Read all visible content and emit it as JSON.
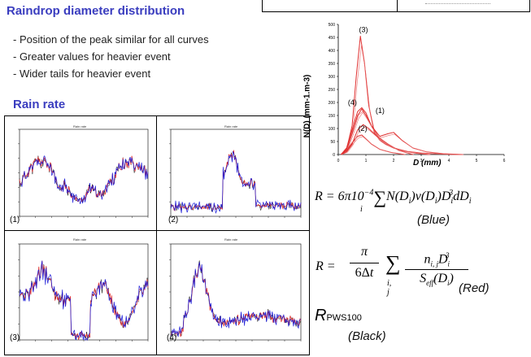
{
  "heading_drop": "Raindrop diameter distribution",
  "bullets": [
    "- Position of the peak similar for all curves",
    "- Greater values for heavier event",
    "- Wider tails for heavier event"
  ],
  "heading_rain": "Rain rate",
  "panels": [
    {
      "label": "(1)",
      "title": "Rain rate"
    },
    {
      "label": "(2)",
      "title": "Rain rate"
    },
    {
      "label": "(3)",
      "title": "Rain rate"
    },
    {
      "label": "(4)",
      "title": "Rain rate"
    }
  ],
  "colors": {
    "accent": "#3a3dbf",
    "blue": "#1a1ad8",
    "red": "#e03030",
    "black": "#000000"
  },
  "chart_data": {
    "type": "line",
    "xlabel": "D (mm)",
    "ylabel": "N(D) (mm-1.m-3)",
    "xlim": [
      0,
      6
    ],
    "ylim": [
      0,
      500
    ],
    "xticks": [
      "0",
      "1",
      "2",
      "3",
      "4",
      "5",
      "6"
    ],
    "yticks": [
      "0",
      "50",
      "100",
      "150",
      "200",
      "250",
      "300",
      "350",
      "400",
      "450",
      "500"
    ],
    "curve_labels": [
      "(3)",
      "(4)",
      "(1)",
      "(2)"
    ],
    "series": [
      {
        "label": "(3)",
        "x": [
          0.1,
          0.3,
          0.5,
          0.65,
          0.8,
          0.95,
          1.1,
          1.3,
          1.5,
          1.7,
          2.0,
          2.5,
          3.0,
          3.5,
          4.0,
          4.5
        ],
        "y": [
          0,
          20,
          110,
          300,
          455,
          350,
          190,
          85,
          55,
          40,
          25,
          12,
          6,
          3,
          1,
          0
        ]
      },
      {
        "label": "(4)",
        "x": [
          0.1,
          0.3,
          0.5,
          0.7,
          0.85,
          1.0,
          1.2,
          1.5,
          1.8,
          2.0,
          2.3,
          2.7,
          3.2,
          3.8,
          4.5
        ],
        "y": [
          0,
          25,
          95,
          165,
          180,
          160,
          110,
          70,
          80,
          85,
          55,
          25,
          10,
          3,
          0
        ]
      },
      {
        "label": "(1)",
        "x": [
          0.1,
          0.3,
          0.5,
          0.7,
          0.85,
          1.0,
          1.2,
          1.5,
          1.9,
          2.3,
          2.8,
          3.3
        ],
        "y": [
          0,
          20,
          80,
          150,
          175,
          150,
          110,
          60,
          30,
          15,
          5,
          0
        ]
      },
      {
        "label": "(2)",
        "x": [
          0.1,
          0.3,
          0.5,
          0.7,
          0.85,
          1.0,
          1.2,
          1.5,
          1.9,
          2.4
        ],
        "y": [
          0,
          15,
          45,
          70,
          75,
          60,
          40,
          20,
          8,
          0
        ]
      },
      {
        "label": "",
        "x": [
          0.1,
          0.3,
          0.5,
          0.7,
          0.9,
          1.1,
          1.4,
          1.8,
          2.2,
          2.7
        ],
        "y": [
          0,
          10,
          40,
          95,
          115,
          100,
          70,
          40,
          15,
          0
        ]
      }
    ]
  },
  "equations": {
    "blue": {
      "lhs": "R = 6π10",
      "exp": "−4",
      "body": "N(D",
      "legend": "(Blue)"
    },
    "red": {
      "lhs": "R =",
      "legend": "(Red)"
    },
    "black": {
      "symbol": "R",
      "sub": "PWS100",
      "legend": "(Black)"
    }
  }
}
